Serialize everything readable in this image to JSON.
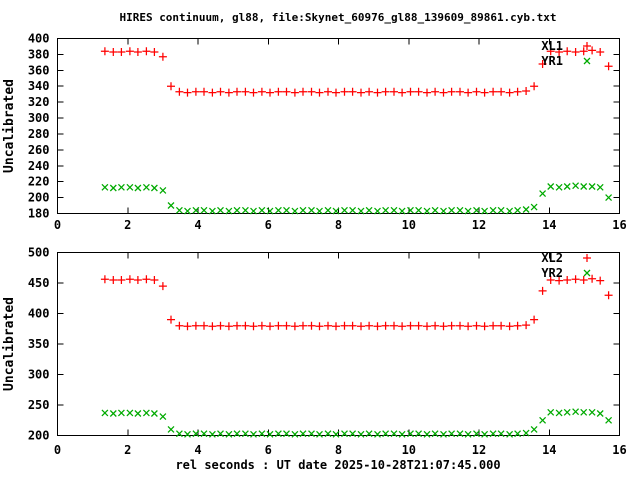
{
  "title": "HIRES continuum, gl88, file:Skynet_60976_gl88_139609_89861.cyb.txt",
  "xlabel": "rel seconds : UT date 2025-10-28T21:07:45.000",
  "colors": {
    "series_red": "#ff0000",
    "series_green": "#00aa00",
    "text": "#000000",
    "background": "#ffffff",
    "border": "#000000"
  },
  "chart_data": [
    {
      "type": "scatter",
      "panel": "top",
      "ylabel": "Uncalibrated",
      "xlim": [
        0,
        16
      ],
      "ylim": [
        180,
        400
      ],
      "xticks": [
        0,
        2,
        4,
        6,
        8,
        10,
        12,
        14,
        16
      ],
      "yticks": [
        180,
        200,
        220,
        240,
        260,
        280,
        300,
        320,
        340,
        360,
        380,
        400
      ],
      "grid": false,
      "legend_position": "inside-top-right",
      "x": [
        1.35,
        1.59,
        1.82,
        2.06,
        2.29,
        2.53,
        2.76,
        3.0,
        3.23,
        3.47,
        3.7,
        3.94,
        4.17,
        4.41,
        4.64,
        4.88,
        5.11,
        5.35,
        5.58,
        5.82,
        6.05,
        6.29,
        6.52,
        6.76,
        6.99,
        7.23,
        7.46,
        7.7,
        7.93,
        8.17,
        8.4,
        8.64,
        8.87,
        9.11,
        9.34,
        9.58,
        9.81,
        10.05,
        10.28,
        10.52,
        10.75,
        10.99,
        11.22,
        11.46,
        11.69,
        11.93,
        12.16,
        12.4,
        12.63,
        12.87,
        13.1,
        13.34,
        13.57,
        13.81,
        14.04,
        14.28,
        14.51,
        14.75,
        14.98,
        15.22,
        15.45,
        15.69
      ],
      "series": [
        {
          "name": "XL1",
          "marker": "plus",
          "color": "#ff0000",
          "y": [
            384,
            383,
            383,
            384,
            383,
            384,
            383,
            377,
            340,
            333,
            332,
            333,
            333,
            332,
            333,
            332,
            333,
            333,
            332,
            333,
            332,
            333,
            333,
            332,
            333,
            333,
            332,
            333,
            332,
            333,
            333,
            332,
            333,
            332,
            333,
            333,
            332,
            333,
            333,
            332,
            333,
            332,
            333,
            333,
            332,
            333,
            332,
            333,
            333,
            332,
            333,
            334,
            340,
            368,
            384,
            383,
            384,
            383,
            384,
            385,
            383,
            365
          ]
        },
        {
          "name": "YR1",
          "marker": "cross",
          "color": "#00aa00",
          "y": [
            213,
            212,
            213,
            213,
            212,
            213,
            212,
            209,
            190,
            184,
            183,
            184,
            184,
            183,
            184,
            183,
            184,
            184,
            183,
            184,
            183,
            184,
            184,
            183,
            184,
            184,
            183,
            184,
            183,
            184,
            184,
            183,
            184,
            183,
            184,
            184,
            183,
            184,
            184,
            183,
            184,
            183,
            184,
            184,
            183,
            184,
            183,
            184,
            184,
            183,
            184,
            185,
            188,
            205,
            214,
            213,
            214,
            215,
            214,
            214,
            213,
            200
          ]
        }
      ]
    },
    {
      "type": "scatter",
      "panel": "bottom",
      "ylabel": "Uncalibrated",
      "xlim": [
        0,
        16
      ],
      "ylim": [
        200,
        500
      ],
      "xticks": [
        0,
        2,
        4,
        6,
        8,
        10,
        12,
        14,
        16
      ],
      "yticks": [
        200,
        250,
        300,
        350,
        400,
        450,
        500
      ],
      "grid": false,
      "legend_position": "inside-top-right",
      "x": [
        1.35,
        1.59,
        1.82,
        2.06,
        2.29,
        2.53,
        2.76,
        3.0,
        3.23,
        3.47,
        3.7,
        3.94,
        4.17,
        4.41,
        4.64,
        4.88,
        5.11,
        5.35,
        5.58,
        5.82,
        6.05,
        6.29,
        6.52,
        6.76,
        6.99,
        7.23,
        7.46,
        7.7,
        7.93,
        8.17,
        8.4,
        8.64,
        8.87,
        9.11,
        9.34,
        9.58,
        9.81,
        10.05,
        10.28,
        10.52,
        10.75,
        10.99,
        11.22,
        11.46,
        11.69,
        11.93,
        12.16,
        12.4,
        12.63,
        12.87,
        13.1,
        13.34,
        13.57,
        13.81,
        14.04,
        14.28,
        14.51,
        14.75,
        14.98,
        15.22,
        15.45,
        15.69
      ],
      "series": [
        {
          "name": "XL2",
          "marker": "plus",
          "color": "#ff0000",
          "y": [
            456,
            455,
            455,
            456,
            455,
            456,
            455,
            445,
            390,
            380,
            379,
            380,
            380,
            379,
            380,
            379,
            380,
            380,
            379,
            380,
            379,
            380,
            380,
            379,
            380,
            380,
            379,
            380,
            379,
            380,
            380,
            379,
            380,
            379,
            380,
            380,
            379,
            380,
            380,
            379,
            380,
            379,
            380,
            380,
            379,
            380,
            379,
            380,
            380,
            379,
            380,
            381,
            390,
            437,
            455,
            454,
            455,
            456,
            455,
            457,
            454,
            430
          ]
        },
        {
          "name": "YR2",
          "marker": "cross",
          "color": "#00aa00",
          "y": [
            237,
            236,
            237,
            237,
            236,
            237,
            236,
            231,
            210,
            203,
            202,
            203,
            203,
            202,
            203,
            202,
            203,
            203,
            202,
            203,
            202,
            203,
            203,
            202,
            203,
            203,
            202,
            203,
            202,
            203,
            203,
            202,
            203,
            202,
            203,
            203,
            202,
            203,
            203,
            202,
            203,
            202,
            203,
            203,
            202,
            203,
            202,
            203,
            203,
            202,
            203,
            204,
            210,
            225,
            238,
            237,
            238,
            239,
            238,
            238,
            236,
            225
          ]
        }
      ]
    }
  ]
}
